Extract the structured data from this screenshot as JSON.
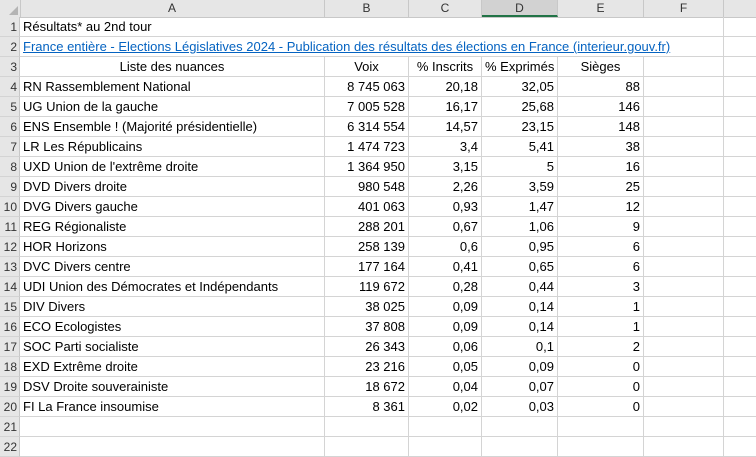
{
  "columns": [
    "A",
    "B",
    "C",
    "D",
    "E",
    "F"
  ],
  "selected_column": "D",
  "rows": [
    {
      "n": "1",
      "a": "Résultats* au 2nd tour",
      "b": "",
      "c": "",
      "d": "",
      "e": ""
    },
    {
      "n": "2",
      "a": "France entière - Elections Législatives 2024 - Publication des résultats des élections en France (interieur.gouv.fr)",
      "b": "",
      "c": "",
      "d": "",
      "e": ""
    },
    {
      "n": "3",
      "a": "Liste des nuances",
      "b": "Voix",
      "c": "% Inscrits",
      "d": "% Exprimés",
      "e": "Sièges"
    },
    {
      "n": "4",
      "a": "RN Rassemblement National",
      "b": "8 745 063",
      "c": "20,18",
      "d": "32,05",
      "e": "88"
    },
    {
      "n": "5",
      "a": "UG Union de la gauche",
      "b": "7 005 528",
      "c": "16,17",
      "d": "25,68",
      "e": "146"
    },
    {
      "n": "6",
      "a": "ENS Ensemble ! (Majorité présidentielle)",
      "b": "6 314 554",
      "c": "14,57",
      "d": "23,15",
      "e": "148"
    },
    {
      "n": "7",
      "a": "LR Les Républicains",
      "b": "1 474 723",
      "c": "3,4",
      "d": "5,41",
      "e": "38"
    },
    {
      "n": "8",
      "a": "UXD Union de l'extrême droite",
      "b": "1 364 950",
      "c": "3,15",
      "d": "5",
      "e": "16"
    },
    {
      "n": "9",
      "a": "DVD Divers droite",
      "b": "980 548",
      "c": "2,26",
      "d": "3,59",
      "e": "25"
    },
    {
      "n": "10",
      "a": "DVG Divers gauche",
      "b": "401 063",
      "c": "0,93",
      "d": "1,47",
      "e": "12"
    },
    {
      "n": "11",
      "a": "REG Régionaliste",
      "b": "288 201",
      "c": "0,67",
      "d": "1,06",
      "e": "9"
    },
    {
      "n": "12",
      "a": "HOR Horizons",
      "b": "258 139",
      "c": "0,6",
      "d": "0,95",
      "e": "6"
    },
    {
      "n": "13",
      "a": "DVC Divers centre",
      "b": "177 164",
      "c": "0,41",
      "d": "0,65",
      "e": "6"
    },
    {
      "n": "14",
      "a": "UDI Union des Démocrates et Indépendants",
      "b": "119 672",
      "c": "0,28",
      "d": "0,44",
      "e": "3"
    },
    {
      "n": "15",
      "a": "DIV Divers",
      "b": "38 025",
      "c": "0,09",
      "d": "0,14",
      "e": "1"
    },
    {
      "n": "16",
      "a": "ECO Ecologistes",
      "b": "37 808",
      "c": "0,09",
      "d": "0,14",
      "e": "1"
    },
    {
      "n": "17",
      "a": "SOC Parti socialiste",
      "b": "26 343",
      "c": "0,06",
      "d": "0,1",
      "e": "2"
    },
    {
      "n": "18",
      "a": "EXD Extrême droite",
      "b": "23 216",
      "c": "0,05",
      "d": "0,09",
      "e": "0"
    },
    {
      "n": "19",
      "a": "DSV Droite souverainiste",
      "b": "18 672",
      "c": "0,04",
      "d": "0,07",
      "e": "0"
    },
    {
      "n": "20",
      "a": "FI La France insoumise",
      "b": "8 361",
      "c": "0,02",
      "d": "0,03",
      "e": "0"
    },
    {
      "n": "21",
      "a": "",
      "b": "",
      "c": "",
      "d": "",
      "e": ""
    },
    {
      "n": "22",
      "a": "",
      "b": "",
      "c": "",
      "d": "",
      "e": ""
    }
  ],
  "colors": {
    "link": "#0563c1",
    "header_bg": "#e6e6e6",
    "selected_accent": "#217346"
  }
}
